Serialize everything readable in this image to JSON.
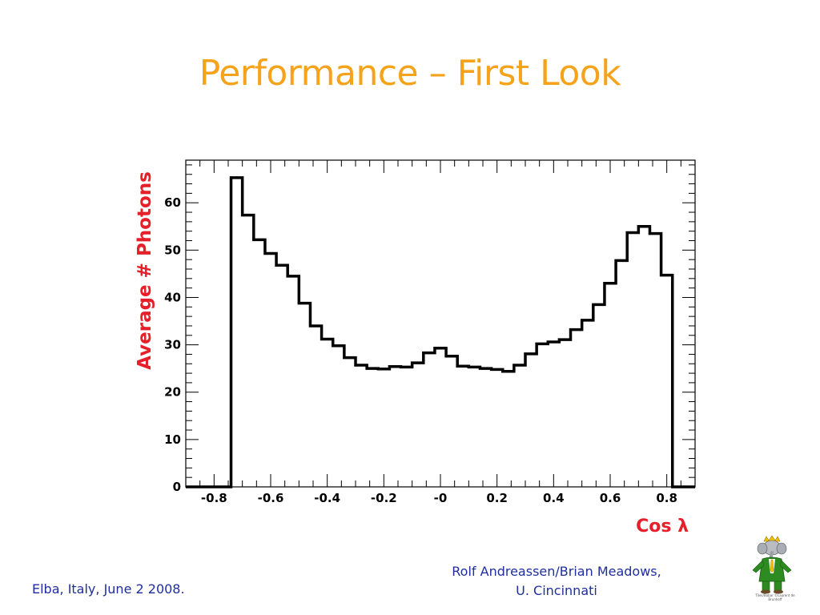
{
  "slide": {
    "title": "Performance – First Look",
    "footer_left": "Elba, Italy, June 2 2008.",
    "footer_right_line1": "Rolf Andreassen/Brian Meadows,",
    "footer_right_line2": "U. Cincinnati",
    "mascot_caption": "Tiles/Babar ©Laurent de Brunhoff"
  },
  "colors": {
    "title": "#F5A31A",
    "axis_label": "#E5202A",
    "footer": "#1F2E9E",
    "histogram": "#000000"
  },
  "chart_data": {
    "type": "histogram",
    "xlabel": "Cos λ",
    "ylabel": "Average # Photons",
    "xlim": [
      -0.9,
      0.9
    ],
    "ylim": [
      0,
      69
    ],
    "xticks": [
      -0.8,
      -0.6,
      -0.4,
      -0.2,
      0,
      0.2,
      0.4,
      0.6,
      0.8
    ],
    "xtick_labels": [
      "-0.8",
      "-0.6",
      "-0.4",
      "-0.2",
      "-0",
      "0.2",
      "0.4",
      "0.6",
      "0.8"
    ],
    "yticks": [
      0,
      10,
      20,
      30,
      40,
      50,
      60
    ],
    "ytick_labels": [
      "0",
      "10",
      "20",
      "30",
      "40",
      "50",
      "60"
    ],
    "bin_edges": [
      -0.9,
      -0.86,
      -0.82,
      -0.78,
      -0.74,
      -0.7,
      -0.66,
      -0.62,
      -0.58,
      -0.54,
      -0.5,
      -0.46,
      -0.42,
      -0.38,
      -0.34,
      -0.3,
      -0.26,
      -0.22,
      -0.18,
      -0.14,
      -0.1,
      -0.06,
      -0.02,
      0.02,
      0.06,
      0.1,
      0.14,
      0.18,
      0.22,
      0.26,
      0.3,
      0.34,
      0.38,
      0.42,
      0.46,
      0.5,
      0.54,
      0.58,
      0.62,
      0.66,
      0.7,
      0.74,
      0.78,
      0.82,
      0.86,
      0.9
    ],
    "values": [
      0,
      0,
      0,
      0,
      65.3,
      57.4,
      52.2,
      49.3,
      46.8,
      44.5,
      38.8,
      34.0,
      31.2,
      29.8,
      27.3,
      25.7,
      25.0,
      24.9,
      25.4,
      25.3,
      26.2,
      28.3,
      29.3,
      27.6,
      25.5,
      25.3,
      25.0,
      24.8,
      24.4,
      25.7,
      28.1,
      30.2,
      30.6,
      31.1,
      33.2,
      35.2,
      38.5,
      43.0,
      47.8,
      53.7,
      55.0,
      53.5,
      44.7,
      0,
      0
    ],
    "grid": false,
    "legend": "none"
  }
}
